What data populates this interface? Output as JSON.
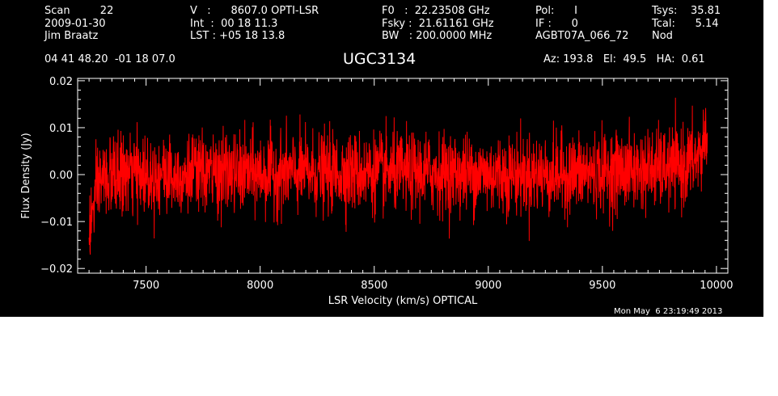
{
  "header": {
    "col1": [
      "Scan         22",
      "2009-01-30",
      "Jim Braatz"
    ],
    "col2": [
      "V   :      8607.0 OPTI-LSR",
      "Int  :  00 18 11.3",
      "LST : +05 18 13.8"
    ],
    "col3": [
      "F0   :  22.23508 GHz",
      "Fsky :  21.61161 GHz",
      "BW   : 200.0000 MHz"
    ],
    "col4": [
      "Pol:      I",
      "IF :      0",
      "AGBT07A_066_72"
    ],
    "col5": [
      "Tsys:    35.81",
      "Tcal:      5.14",
      "Nod"
    ],
    "coords": "04 41 48.20  -01 18 07.0",
    "source": "UGC3134",
    "pointing": "Az: 193.8   El:  49.5   HA:  0.61"
  },
  "timestamp": "Mon May  6 23:19:49 2013",
  "colors": {
    "background": "#000000",
    "axes": "#ffffff",
    "trace": "#ff0000"
  },
  "chart_data": {
    "type": "line",
    "title": "UGC3134",
    "xlabel": "LSR Velocity (km/s) OPTICAL",
    "ylabel": "Flux Density (Jy)",
    "xlim": [
      7200,
      10050
    ],
    "ylim": [
      -0.021,
      0.0205
    ],
    "xticks": [
      7500,
      8000,
      8500,
      9000,
      9500,
      10000
    ],
    "xtick_labels": [
      "7500",
      "8000",
      "8500",
      "9000",
      "9500",
      "10000"
    ],
    "yticks": [
      -0.02,
      -0.01,
      0.0,
      0.01,
      0.02
    ],
    "ytick_labels": [
      "−0.02",
      "−0.01",
      "0.00",
      "0.01",
      "0.02"
    ],
    "grid": false,
    "series": [
      {
        "color": "#ff0000",
        "x_range": [
          7250,
          9960
        ],
        "noise_sigma_jy": 0.0042,
        "envelope": [
          {
            "x": 7250,
            "y": -0.012
          },
          {
            "x": 7270,
            "y": -0.007
          },
          {
            "x": 7300,
            "y": -0.001
          },
          {
            "x": 7400,
            "y": 0.0
          },
          {
            "x": 8500,
            "y": 0.0005
          },
          {
            "x": 9300,
            "y": 0.0
          },
          {
            "x": 9850,
            "y": 0.0015
          },
          {
            "x": 9930,
            "y": 0.004
          },
          {
            "x": 9960,
            "y": 0.01
          }
        ]
      }
    ]
  }
}
